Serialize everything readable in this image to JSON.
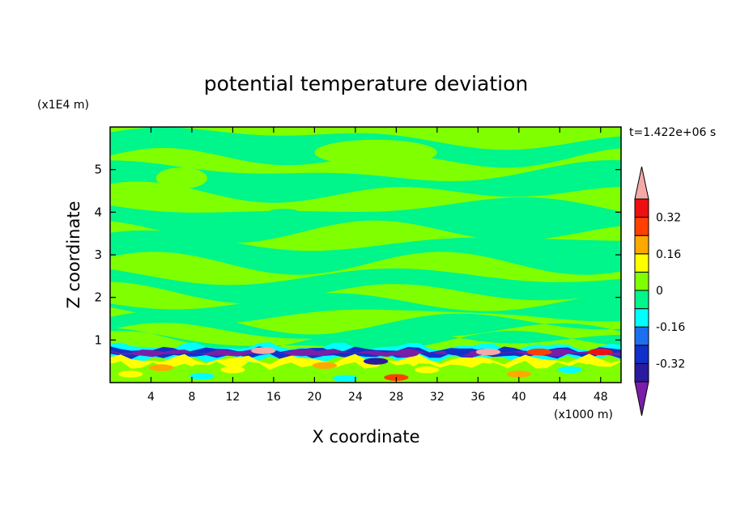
{
  "chart_data": {
    "type": "heatmap",
    "title": "potential temperature deviation",
    "xlabel": "X coordinate",
    "ylabel": "Z coordinate",
    "x_unit_label": "(x1000 m)",
    "y_unit_label": "(x1E4 m)",
    "time_label": "t=1.422e+06 s",
    "xlim": [
      0,
      50
    ],
    "ylim": [
      0,
      6
    ],
    "x_ticks": [
      4,
      8,
      12,
      16,
      20,
      24,
      28,
      32,
      36,
      40,
      44,
      48
    ],
    "y_ticks": [
      1,
      2,
      3,
      4,
      5
    ],
    "colorbar": {
      "levels": [
        -0.4,
        -0.32,
        -0.24,
        -0.16,
        -0.08,
        0,
        0.08,
        0.16,
        0.24,
        0.32,
        0.4
      ],
      "labeled_ticks": [
        "0.32",
        "0.16",
        "0",
        "-0.16",
        "-0.32"
      ],
      "labeled_values": [
        0.32,
        0.16,
        0,
        -0.16,
        -0.32
      ],
      "colors": [
        "#7a1ea8",
        "#2a1a9e",
        "#1030c8",
        "#1e6ef0",
        "#00ffff",
        "#00f58a",
        "#80ff00",
        "#ffff00",
        "#ffa800",
        "#ff4000",
        "#ee1010",
        "#f5a8a8"
      ],
      "extend": "both"
    }
  }
}
